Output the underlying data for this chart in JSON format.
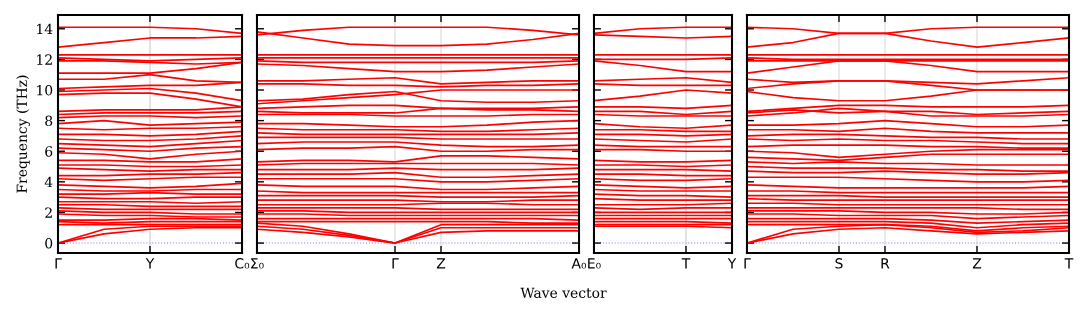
{
  "chart_data": [
    {
      "type": "line",
      "ylabel": "Frequency (THz)",
      "color": "#ff0000",
      "line_style": "solid",
      "categories": [
        "Γ",
        null,
        "Y",
        null,
        "C₀"
      ],
      "ylim": [
        -0.65,
        14.9
      ],
      "yticks": [
        0,
        2,
        4,
        6,
        8,
        10,
        12,
        14
      ],
      "ref_lines": [
        {
          "axis": "y",
          "value": 0,
          "color": "#8080ff",
          "line_style": "dotted"
        },
        {
          "axis": "x",
          "value": "Y",
          "color": "#cccccc",
          "line_style": "solid"
        }
      ],
      "series": [
        {
          "values": [
            14.1,
            14.1,
            14.1,
            14.0,
            13.7
          ]
        },
        {
          "values": [
            12.8,
            13.1,
            13.4,
            13.4,
            13.5
          ]
        },
        {
          "values": [
            12.3,
            12.3,
            12.3,
            12.3,
            12.3
          ]
        },
        {
          "values": [
            12.1,
            12.0,
            11.9,
            12.0,
            12.1
          ]
        },
        {
          "values": [
            11.9,
            11.9,
            11.8,
            11.7,
            11.8
          ]
        },
        {
          "values": [
            11.1,
            11.1,
            11.1,
            11.4,
            11.8
          ]
        },
        {
          "values": [
            10.7,
            10.7,
            11.0,
            10.6,
            10.5
          ]
        },
        {
          "values": [
            10.1,
            10.2,
            10.3,
            10.3,
            10.5
          ]
        },
        {
          "values": [
            9.9,
            10.0,
            10.1,
            9.8,
            9.3
          ]
        },
        {
          "values": [
            9.7,
            9.8,
            9.8,
            9.4,
            8.9
          ]
        },
        {
          "values": [
            8.6,
            8.7,
            8.7,
            8.7,
            8.9
          ]
        },
        {
          "values": [
            8.4,
            8.5,
            8.5,
            8.5,
            8.6
          ]
        },
        {
          "values": [
            8.2,
            8.3,
            8.3,
            8.2,
            8.3
          ]
        },
        {
          "values": [
            7.8,
            8.0,
            7.7,
            7.8,
            7.9
          ]
        },
        {
          "values": [
            7.5,
            7.4,
            7.5,
            7.5,
            7.6
          ]
        },
        {
          "values": [
            7.1,
            7.1,
            7.0,
            7.1,
            7.3
          ]
        },
        {
          "values": [
            6.8,
            6.7,
            6.7,
            6.8,
            7.0
          ]
        },
        {
          "values": [
            6.5,
            6.4,
            6.3,
            6.5,
            6.7
          ]
        },
        {
          "values": [
            6.2,
            6.1,
            6.0,
            6.2,
            6.3
          ]
        },
        {
          "values": [
            5.9,
            5.8,
            5.5,
            5.8,
            6.0
          ]
        },
        {
          "values": [
            5.4,
            5.4,
            5.3,
            5.3,
            5.5
          ]
        },
        {
          "values": [
            5.1,
            5.1,
            5.0,
            5.0,
            5.1
          ]
        },
        {
          "values": [
            4.9,
            4.8,
            4.7,
            4.8,
            4.8
          ]
        },
        {
          "values": [
            4.4,
            4.4,
            4.5,
            4.5,
            4.6
          ]
        },
        {
          "values": [
            4.2,
            4.1,
            4.2,
            4.3,
            4.3
          ]
        },
        {
          "values": [
            3.8,
            3.7,
            3.6,
            3.7,
            3.9
          ]
        },
        {
          "values": [
            3.5,
            3.4,
            3.4,
            3.5,
            3.5
          ]
        },
        {
          "values": [
            3.2,
            3.2,
            3.3,
            3.2,
            3.2
          ]
        },
        {
          "values": [
            3.0,
            2.9,
            2.9,
            3.0,
            3.0
          ]
        },
        {
          "values": [
            2.7,
            2.7,
            2.7,
            2.6,
            2.7
          ]
        },
        {
          "values": [
            2.5,
            2.5,
            2.4,
            2.4,
            2.4
          ]
        },
        {
          "values": [
            2.3,
            2.2,
            2.2,
            2.2,
            2.2
          ]
        },
        {
          "values": [
            2.1,
            2.0,
            2.0,
            1.9,
            1.9
          ]
        },
        {
          "values": [
            1.9,
            1.8,
            1.8,
            1.7,
            1.7
          ]
        },
        {
          "values": [
            1.5,
            1.5,
            1.6,
            1.6,
            1.5
          ]
        },
        {
          "values": [
            1.4,
            1.3,
            1.4,
            1.4,
            1.4
          ]
        },
        {
          "values": [
            1.2,
            1.2,
            1.2,
            1.2,
            1.2
          ]
        },
        {
          "values": [
            0,
            0.9,
            1.1,
            1.1,
            1.1
          ]
        },
        {
          "values": [
            0,
            0.6,
            0.9,
            1.0,
            1.0
          ]
        }
      ]
    },
    {
      "type": "line",
      "color": "#ff0000",
      "line_style": "solid",
      "grid": "x",
      "tick_labels": "x",
      "categories": [
        "Σ₀",
        null,
        null,
        "Γ",
        "Z",
        null,
        null,
        "A₀"
      ],
      "ylim": [
        -0.65,
        14.9
      ],
      "yticks": [
        0,
        2,
        4,
        6,
        8,
        10,
        12,
        14
      ],
      "ref_lines": [
        {
          "axis": "y",
          "value": 0,
          "color": "#8080ff",
          "line_style": "dotted"
        }
      ],
      "series": [
        {
          "values": [
            13.8,
            13.4,
            13.0,
            12.9,
            12.9,
            13.0,
            13.3,
            13.7
          ]
        },
        {
          "values": [
            13.6,
            13.9,
            14.1,
            14.1,
            14.1,
            14.1,
            13.9,
            13.6
          ]
        },
        {
          "values": [
            12.3,
            12.3,
            12.3,
            12.3,
            12.3,
            12.3,
            12.3,
            12.3
          ]
        },
        {
          "values": [
            12.1,
            12.1,
            12.1,
            12.1,
            12.1,
            12.1,
            12.1,
            12.1
          ]
        },
        {
          "values": [
            11.9,
            11.8,
            11.8,
            11.8,
            11.8,
            11.8,
            11.8,
            11.9
          ]
        },
        {
          "values": [
            11.7,
            11.6,
            11.4,
            11.2,
            11.2,
            11.3,
            11.5,
            11.7
          ]
        },
        {
          "values": [
            10.6,
            10.6,
            10.7,
            10.8,
            10.4,
            10.5,
            10.6,
            10.6
          ]
        },
        {
          "values": [
            10.4,
            10.4,
            10.3,
            10.3,
            10.2,
            10.3,
            10.3,
            10.4
          ]
        },
        {
          "values": [
            9.3,
            9.4,
            9.7,
            9.9,
            9.3,
            9.2,
            9.2,
            9.3
          ]
        },
        {
          "values": [
            9.1,
            9.3,
            9.5,
            9.7,
            10.0,
            10.0,
            10.0,
            10.0
          ]
        },
        {
          "values": [
            8.8,
            8.9,
            9.0,
            9.0,
            8.8,
            8.8,
            8.8,
            8.9
          ]
        },
        {
          "values": [
            8.6,
            8.5,
            8.5,
            8.5,
            8.8,
            8.7,
            8.7,
            8.6
          ]
        },
        {
          "values": [
            8.4,
            8.4,
            8.4,
            8.3,
            8.3,
            8.3,
            8.4,
            8.4
          ]
        },
        {
          "values": [
            7.8,
            7.8,
            7.7,
            7.6,
            7.6,
            7.7,
            7.9,
            8.0
          ]
        },
        {
          "values": [
            7.5,
            7.4,
            7.4,
            7.4,
            7.3,
            7.3,
            7.4,
            7.5
          ]
        },
        {
          "values": [
            7.2,
            7.1,
            7.1,
            7.1,
            7.1,
            7.1,
            7.1,
            7.2
          ]
        },
        {
          "values": [
            6.9,
            6.9,
            6.9,
            6.9,
            6.8,
            6.8,
            6.8,
            6.8
          ]
        },
        {
          "values": [
            6.5,
            6.6,
            6.6,
            6.6,
            6.4,
            6.3,
            6.3,
            6.4
          ]
        },
        {
          "values": [
            6.1,
            6.2,
            6.2,
            6.3,
            6.0,
            6.0,
            6.1,
            6.1
          ]
        },
        {
          "values": [
            5.3,
            5.4,
            5.4,
            5.3,
            5.7,
            5.7,
            5.6,
            5.5
          ]
        },
        {
          "values": [
            5.1,
            5.2,
            5.2,
            5.2,
            5.2,
            5.2,
            5.2,
            5.1
          ]
        },
        {
          "values": [
            4.8,
            4.8,
            4.8,
            4.9,
            4.8,
            4.8,
            4.8,
            4.9
          ]
        },
        {
          "values": [
            4.5,
            4.5,
            4.5,
            4.6,
            4.3,
            4.3,
            4.4,
            4.5
          ]
        },
        {
          "values": [
            4.2,
            4.2,
            4.2,
            4.2,
            4.0,
            4.0,
            4.1,
            4.2
          ]
        },
        {
          "values": [
            3.8,
            3.7,
            3.7,
            3.7,
            3.5,
            3.5,
            3.6,
            3.7
          ]
        },
        {
          "values": [
            3.4,
            3.3,
            3.3,
            3.3,
            3.3,
            3.3,
            3.3,
            3.3
          ]
        },
        {
          "values": [
            3.1,
            3.1,
            3.1,
            3.1,
            3.0,
            3.0,
            3.0,
            3.1
          ]
        },
        {
          "values": [
            2.8,
            2.8,
            2.8,
            2.8,
            2.7,
            2.7,
            2.8,
            2.8
          ]
        },
        {
          "values": [
            2.5,
            2.5,
            2.5,
            2.5,
            2.6,
            2.6,
            2.5,
            2.5
          ]
        },
        {
          "values": [
            2.3,
            2.3,
            2.3,
            2.3,
            2.2,
            2.2,
            2.2,
            2.2
          ]
        },
        {
          "values": [
            2.1,
            2.1,
            2.0,
            2.0,
            2.0,
            2.0,
            2.0,
            2.0
          ]
        },
        {
          "values": [
            1.9,
            1.9,
            1.8,
            1.8,
            1.8,
            1.8,
            1.8,
            1.8
          ]
        },
        {
          "values": [
            1.6,
            1.6,
            1.6,
            1.6,
            1.6,
            1.6,
            1.6,
            1.5
          ]
        },
        {
          "values": [
            1.4,
            1.4,
            1.4,
            1.4,
            1.4,
            1.4,
            1.3,
            1.3
          ]
        },
        {
          "values": [
            1.3,
            1.1,
            0.6,
            0,
            1.0,
            1.0,
            1.0,
            1.0
          ]
        },
        {
          "values": [
            0.9,
            0.7,
            0.4,
            0,
            0.7,
            0.8,
            0.8,
            0.8
          ]
        },
        {
          "values": [
            1.1,
            0.9,
            0.5,
            0,
            1.2,
            1.2,
            1.2,
            1.2
          ]
        }
      ]
    },
    {
      "type": "line",
      "xlabel": "Wave vector",
      "color": "#ff0000",
      "line_style": "solid",
      "tick_labels": "x",
      "categories": [
        "E₀",
        null,
        "T",
        "Y"
      ],
      "ylim": [
        -0.65,
        14.9
      ],
      "yticks": [
        0,
        2,
        4,
        6,
        8,
        10,
        12,
        14
      ],
      "ref_lines": [
        {
          "axis": "y",
          "value": 0,
          "color": "#8080ff",
          "line_style": "dotted"
        },
        {
          "axis": "x",
          "value": "T",
          "color": "#cccccc",
          "line_style": "solid"
        }
      ],
      "series": [
        {
          "values": [
            13.7,
            14.0,
            14.1,
            14.1
          ]
        },
        {
          "values": [
            13.6,
            13.5,
            13.4,
            13.5
          ]
        },
        {
          "values": [
            12.3,
            12.3,
            12.3,
            12.3
          ]
        },
        {
          "values": [
            12.0,
            12.0,
            12.0,
            12.1
          ]
        },
        {
          "values": [
            11.9,
            11.6,
            11.2,
            11.2
          ]
        },
        {
          "values": [
            10.6,
            10.7,
            10.8,
            10.5
          ]
        },
        {
          "values": [
            10.4,
            10.3,
            10.3,
            10.3
          ]
        },
        {
          "values": [
            9.3,
            9.6,
            10.0,
            9.8
          ]
        },
        {
          "values": [
            8.9,
            8.9,
            8.8,
            9.0
          ]
        },
        {
          "values": [
            8.6,
            8.6,
            8.4,
            8.6
          ]
        },
        {
          "values": [
            8.4,
            8.3,
            8.3,
            8.3
          ]
        },
        {
          "values": [
            7.8,
            7.6,
            7.5,
            7.7
          ]
        },
        {
          "values": [
            7.4,
            7.4,
            7.3,
            7.3
          ]
        },
        {
          "values": [
            7.1,
            7.1,
            7.0,
            7.1
          ]
        },
        {
          "values": [
            6.8,
            6.7,
            6.6,
            6.8
          ]
        },
        {
          "values": [
            6.4,
            6.3,
            6.3,
            6.3
          ]
        },
        {
          "values": [
            6.1,
            6.1,
            6.0,
            6.0
          ]
        },
        {
          "values": [
            5.4,
            5.3,
            5.3,
            5.4
          ]
        },
        {
          "values": [
            5.1,
            5.1,
            5.0,
            5.1
          ]
        },
        {
          "values": [
            4.8,
            4.8,
            4.8,
            4.7
          ]
        },
        {
          "values": [
            4.5,
            4.5,
            4.4,
            4.4
          ]
        },
        {
          "values": [
            4.2,
            4.1,
            4.1,
            4.2
          ]
        },
        {
          "values": [
            3.8,
            3.7,
            3.6,
            3.7
          ]
        },
        {
          "values": [
            3.5,
            3.4,
            3.4,
            3.4
          ]
        },
        {
          "values": [
            3.2,
            3.1,
            3.1,
            3.0
          ]
        },
        {
          "values": [
            2.9,
            2.8,
            2.8,
            2.8
          ]
        },
        {
          "values": [
            2.5,
            2.5,
            2.5,
            2.6
          ]
        },
        {
          "values": [
            2.3,
            2.2,
            2.3,
            2.3
          ]
        },
        {
          "values": [
            2.0,
            2.0,
            2.0,
            2.0
          ]
        },
        {
          "values": [
            1.8,
            1.8,
            1.8,
            1.8
          ]
        },
        {
          "values": [
            1.6,
            1.6,
            1.6,
            1.6
          ]
        },
        {
          "values": [
            1.4,
            1.4,
            1.4,
            1.3
          ]
        },
        {
          "values": [
            1.2,
            1.2,
            1.2,
            1.2
          ]
        },
        {
          "values": [
            1.1,
            1.1,
            1.1,
            1.0
          ]
        }
      ]
    },
    {
      "type": "line",
      "color": "#ff0000",
      "line_style": "solid",
      "grid": "x",
      "tick_labels": "x",
      "categories": [
        "Γ",
        null,
        "S",
        "R",
        null,
        "Z",
        null,
        "T"
      ],
      "ylim": [
        -0.65,
        14.9
      ],
      "yticks": [
        0,
        2,
        4,
        6,
        8,
        10,
        12,
        14
      ],
      "ref_lines": [
        {
          "axis": "y",
          "value": 0,
          "color": "#8080ff",
          "line_style": "dotted"
        }
      ],
      "series": [
        {
          "values": [
            14.1,
            14.0,
            13.7,
            13.7,
            14.0,
            14.1,
            14.1,
            14.1
          ]
        },
        {
          "values": [
            12.8,
            13.1,
            13.7,
            13.7,
            13.2,
            12.8,
            13.1,
            13.4
          ]
        },
        {
          "values": [
            12.3,
            12.3,
            12.3,
            12.3,
            12.3,
            12.3,
            12.3,
            12.3
          ]
        },
        {
          "values": [
            12.1,
            12.0,
            12.0,
            12.0,
            12.0,
            12.0,
            12.0,
            12.0
          ]
        },
        {
          "values": [
            11.9,
            11.9,
            11.9,
            11.9,
            11.9,
            11.9,
            11.9,
            11.9
          ]
        },
        {
          "values": [
            11.1,
            11.5,
            11.9,
            11.9,
            11.6,
            11.2,
            11.2,
            11.2
          ]
        },
        {
          "values": [
            10.7,
            10.5,
            10.6,
            10.6,
            10.5,
            10.4,
            10.6,
            10.8
          ]
        },
        {
          "values": [
            10.1,
            10.4,
            10.6,
            10.6,
            10.3,
            10.0,
            10.0,
            10.0
          ]
        },
        {
          "values": [
            9.9,
            9.5,
            9.3,
            9.3,
            9.6,
            10.0,
            10.0,
            10.0
          ]
        },
        {
          "values": [
            8.6,
            8.8,
            9.0,
            9.0,
            8.9,
            8.9,
            8.9,
            9.0
          ]
        },
        {
          "values": [
            8.5,
            8.7,
            8.5,
            8.6,
            8.6,
            8.4,
            8.5,
            8.6
          ]
        },
        {
          "values": [
            8.3,
            8.5,
            8.8,
            8.6,
            8.3,
            8.3,
            8.3,
            8.4
          ]
        },
        {
          "values": [
            7.7,
            7.7,
            7.8,
            8.0,
            7.8,
            7.6,
            7.6,
            7.7
          ]
        },
        {
          "values": [
            7.4,
            7.4,
            7.3,
            7.5,
            7.3,
            7.2,
            7.2,
            7.2
          ]
        },
        {
          "values": [
            7.0,
            7.1,
            7.1,
            7.0,
            6.9,
            6.9,
            6.8,
            6.8
          ]
        },
        {
          "values": [
            6.8,
            6.7,
            6.8,
            6.7,
            6.7,
            6.6,
            6.5,
            6.5
          ]
        },
        {
          "values": [
            6.3,
            6.4,
            6.4,
            6.4,
            6.3,
            6.3,
            6.2,
            6.2
          ]
        },
        {
          "values": [
            6.0,
            5.9,
            5.6,
            5.8,
            6.0,
            6.1,
            6.1,
            6.1
          ]
        },
        {
          "values": [
            5.6,
            5.5,
            5.4,
            5.6,
            5.8,
            5.8,
            5.8,
            5.8
          ]
        },
        {
          "values": [
            5.3,
            5.2,
            5.3,
            5.2,
            5.2,
            5.1,
            5.1,
            5.1
          ]
        },
        {
          "values": [
            5.0,
            4.9,
            4.9,
            4.9,
            4.8,
            4.8,
            4.7,
            4.7
          ]
        },
        {
          "values": [
            4.7,
            4.6,
            4.6,
            4.7,
            4.6,
            4.5,
            4.5,
            4.6
          ]
        },
        {
          "values": [
            4.3,
            4.3,
            4.3,
            4.2,
            4.1,
            4.0,
            4.0,
            4.1
          ]
        },
        {
          "values": [
            3.8,
            3.7,
            3.6,
            3.6,
            3.6,
            3.6,
            3.6,
            3.7
          ]
        },
        {
          "values": [
            3.4,
            3.4,
            3.3,
            3.3,
            3.3,
            3.3,
            3.3,
            3.3
          ]
        },
        {
          "values": [
            3.1,
            3.1,
            3.1,
            3.0,
            3.0,
            3.0,
            3.0,
            3.0
          ]
        },
        {
          "values": [
            2.9,
            2.8,
            2.8,
            2.8,
            2.8,
            2.8,
            2.8,
            2.8
          ]
        },
        {
          "values": [
            2.6,
            2.6,
            2.5,
            2.5,
            2.5,
            2.5,
            2.5,
            2.5
          ]
        },
        {
          "values": [
            2.3,
            2.3,
            2.3,
            2.3,
            2.3,
            2.3,
            2.2,
            2.2
          ]
        },
        {
          "values": [
            2.1,
            2.1,
            2.1,
            2.0,
            2.0,
            1.9,
            1.9,
            2.0
          ]
        },
        {
          "values": [
            1.9,
            1.9,
            1.8,
            1.8,
            1.8,
            1.6,
            1.7,
            1.8
          ]
        },
        {
          "values": [
            1.6,
            1.6,
            1.6,
            1.6,
            1.5,
            1.3,
            1.4,
            1.5
          ]
        },
        {
          "values": [
            1.4,
            1.4,
            1.4,
            1.4,
            1.3,
            1.0,
            1.2,
            1.3
          ]
        },
        {
          "values": [
            1.2,
            1.2,
            1.2,
            1.2,
            1.1,
            0.8,
            1.0,
            1.1
          ]
        },
        {
          "values": [
            0,
            0.9,
            1.1,
            1.2,
            1.0,
            0.7,
            0.8,
            1.0
          ]
        },
        {
          "values": [
            0,
            0.6,
            0.9,
            1.0,
            0.8,
            0.6,
            0.7,
            0.8
          ]
        }
      ]
    }
  ]
}
